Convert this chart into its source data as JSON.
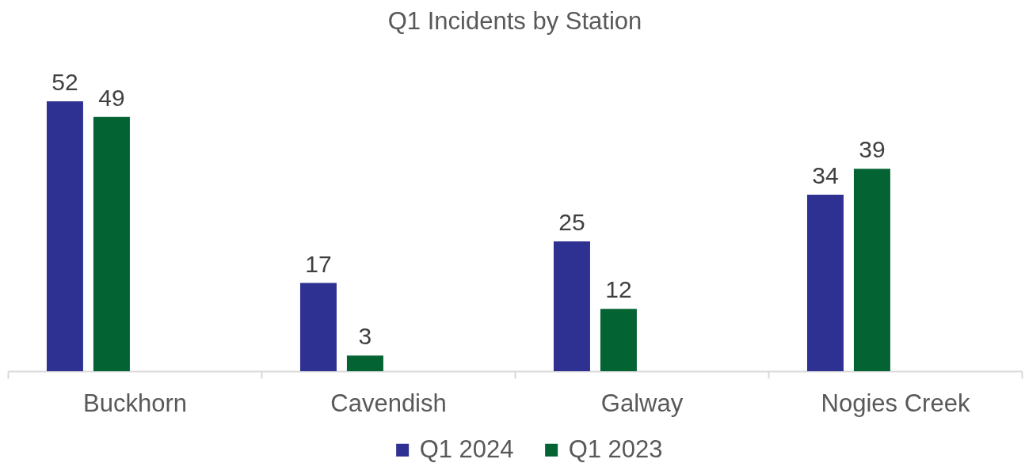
{
  "chart_data": {
    "type": "bar",
    "title": "Q1 Incidents by Station",
    "categories": [
      "Buckhorn",
      "Cavendish",
      "Galway",
      "Nogies Creek"
    ],
    "series": [
      {
        "name": "Q1 2024",
        "color": "#2e3192",
        "values": [
          52,
          17,
          25,
          34
        ]
      },
      {
        "name": "Q1 2023",
        "color": "#046333",
        "values": [
          49,
          3,
          12,
          39
        ]
      }
    ],
    "data_labels": true,
    "legend": "bottom"
  }
}
